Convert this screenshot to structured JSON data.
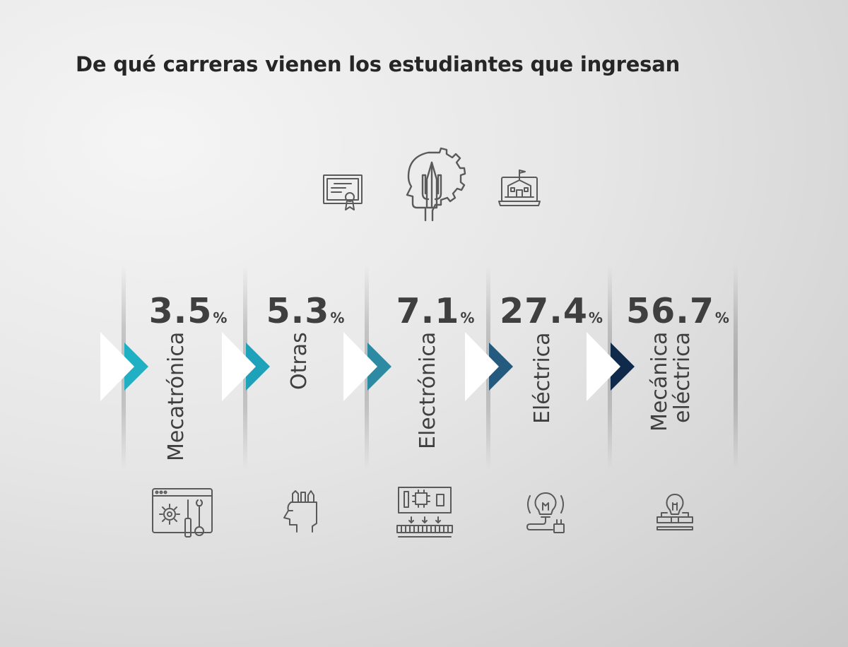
{
  "title": "De qué carreras vienen los estudiantes que ingresan",
  "chart_data": {
    "type": "bar",
    "title": "De qué carreras vienen los estudiantes que ingresan",
    "categories": [
      "Mecatrónica",
      "Otras",
      "Electrónica",
      "Eléctrica",
      "Mecánica eléctrica"
    ],
    "values": [
      3.5,
      5.3,
      7.1,
      27.4,
      56.7
    ],
    "unit": "%",
    "colors": [
      "#1fb0c4",
      "#1ea2b9",
      "#2c8aa3",
      "#235a7d",
      "#0f2a4b"
    ]
  },
  "top_icons": [
    "diploma-icon",
    "head-gear-pencil-icon",
    "school-laptop-icon"
  ],
  "bottom_icons": [
    "mechatronics-tools-icon",
    "head-pencils-icon",
    "circuit-board-icon",
    "lightbulb-plug-icon",
    "lightbulb-tool-icon"
  ]
}
